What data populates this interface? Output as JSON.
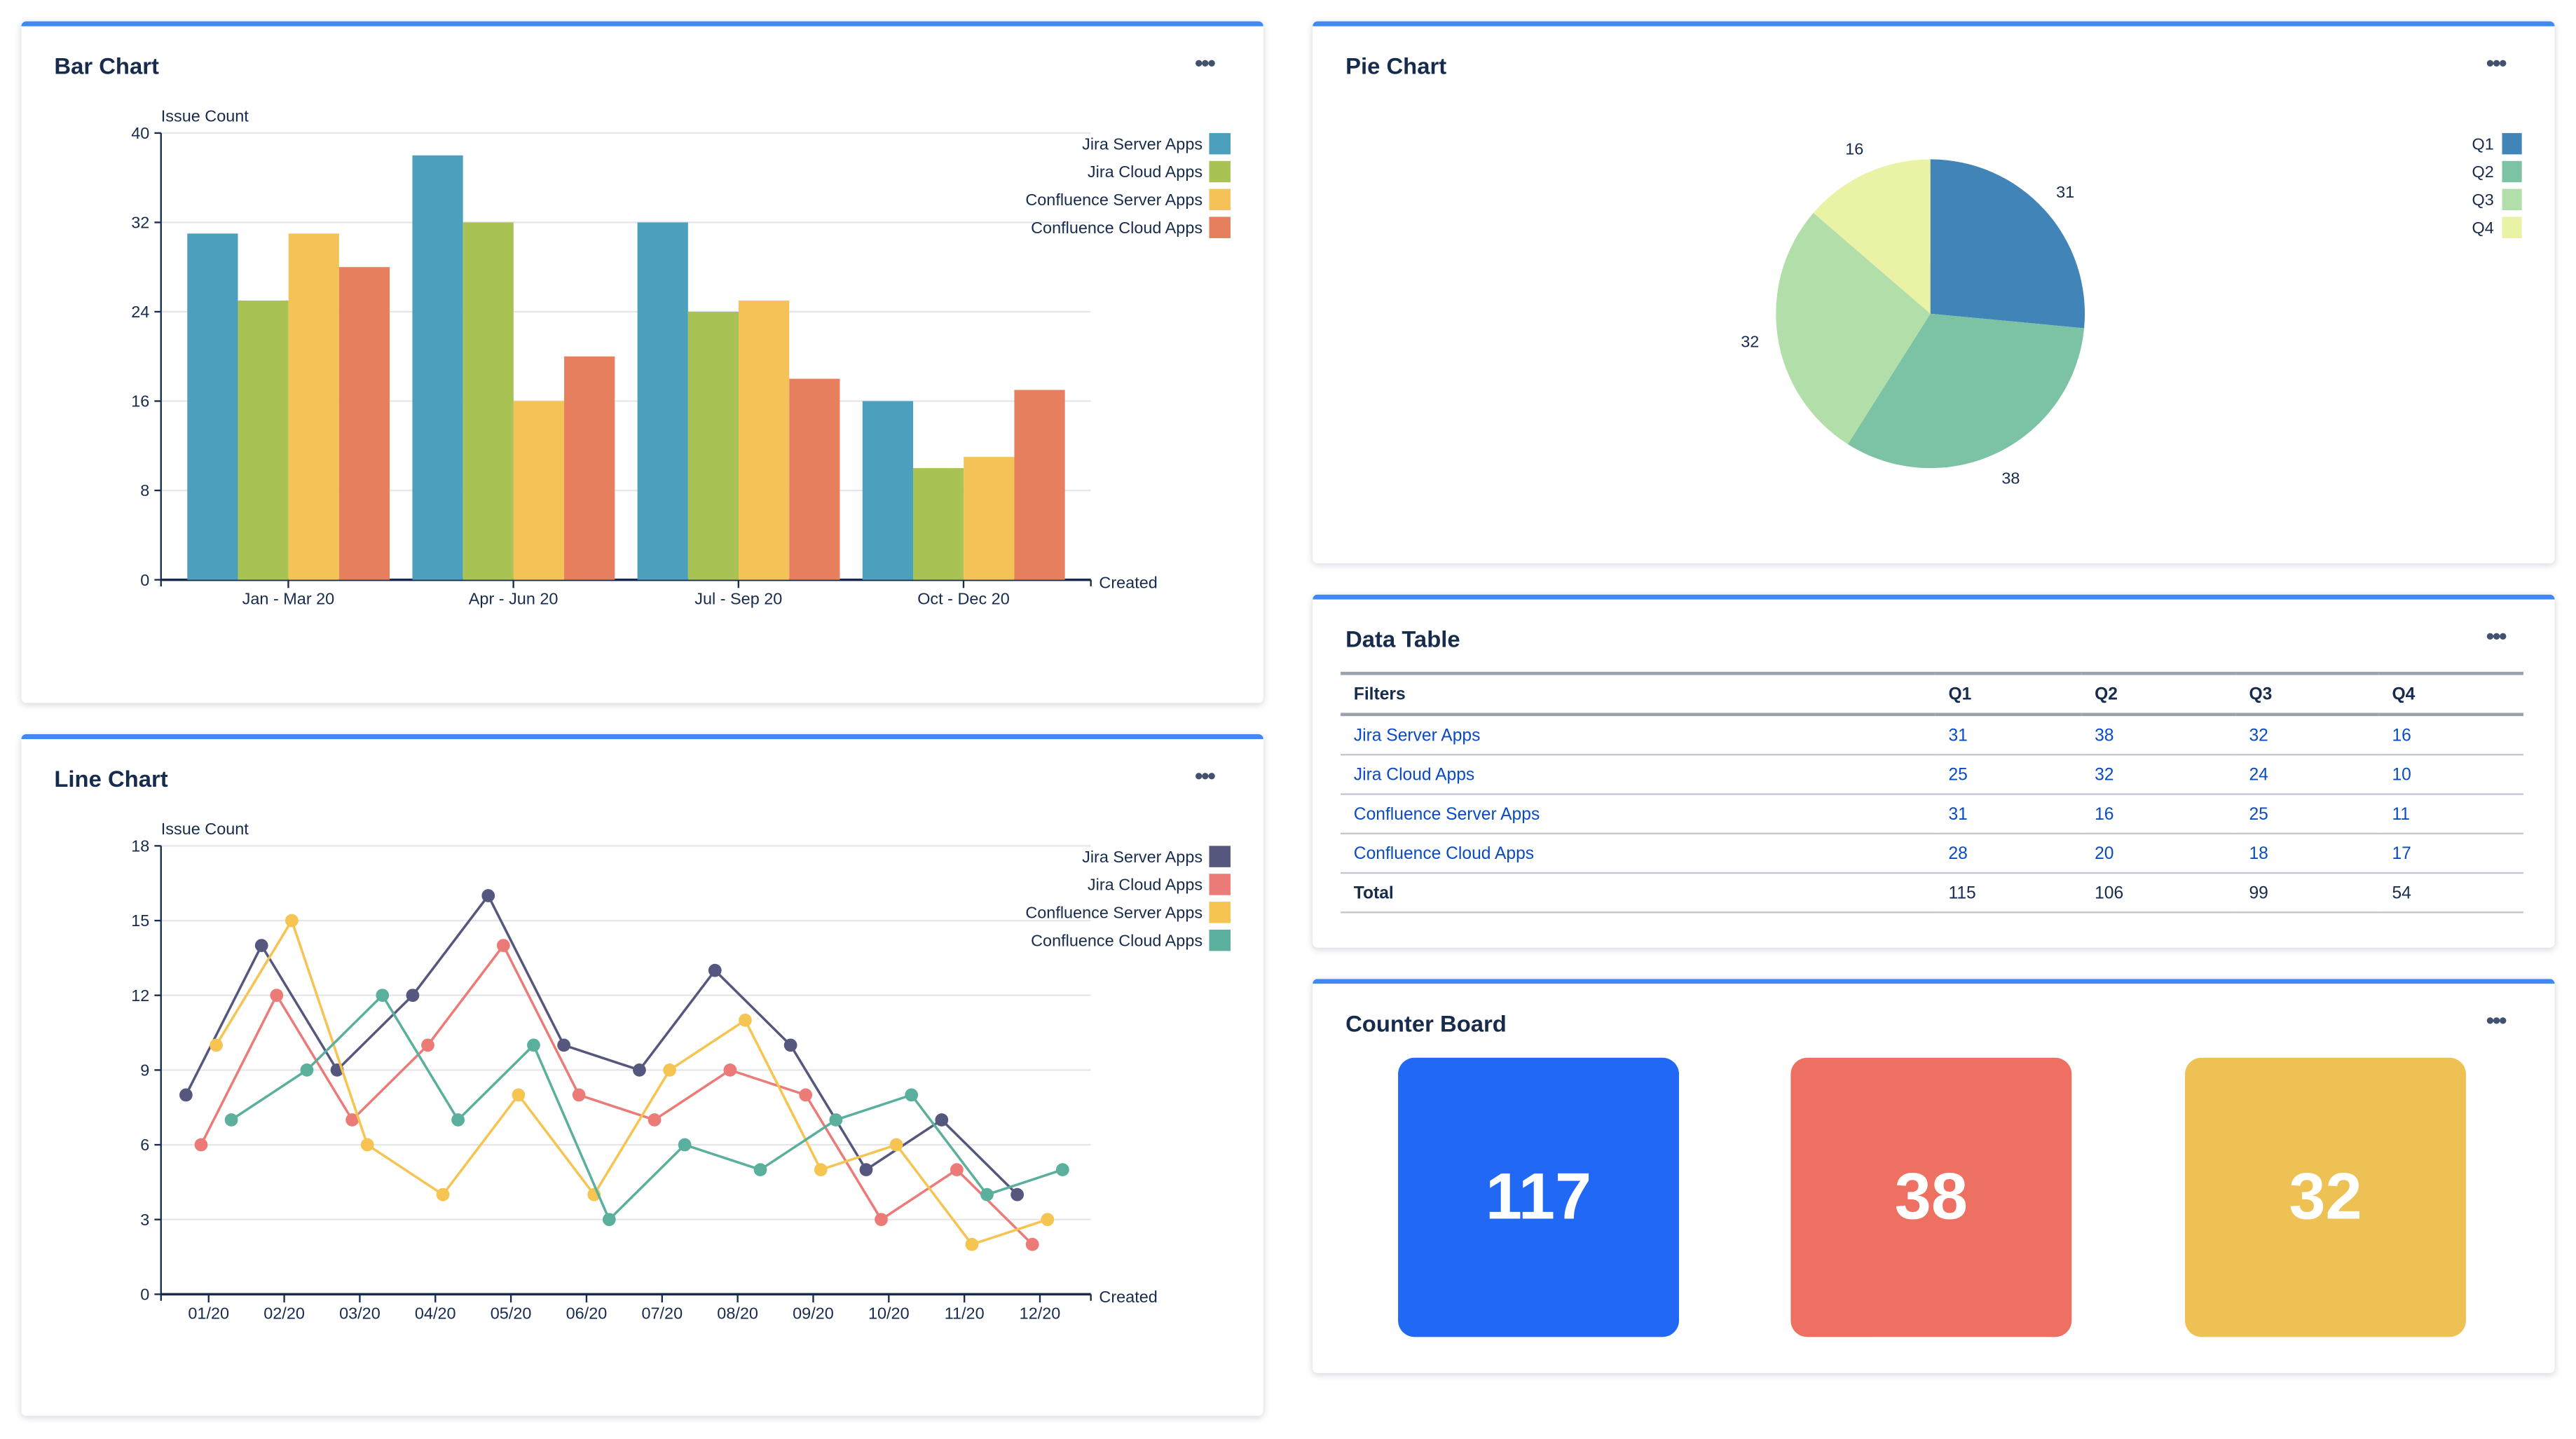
{
  "menu_label": "•••",
  "bar_card": {
    "title": "Bar Chart"
  },
  "line_card": {
    "title": "Line Chart"
  },
  "pie_card": {
    "title": "Pie Chart"
  },
  "table_card": {
    "title": "Data Table",
    "headers": [
      "Filters",
      "Q1",
      "Q2",
      "Q3",
      "Q4"
    ],
    "rows": [
      [
        "Jira Server Apps",
        "31",
        "38",
        "32",
        "16"
      ],
      [
        "Jira Cloud Apps",
        "25",
        "32",
        "24",
        "10"
      ],
      [
        "Confluence Server Apps",
        "31",
        "16",
        "25",
        "11"
      ],
      [
        "Confluence Cloud Apps",
        "28",
        "20",
        "18",
        "17"
      ]
    ],
    "total": [
      "Total",
      "115",
      "106",
      "99",
      "54"
    ]
  },
  "counter_card": {
    "title": "Counter Board",
    "counters": [
      {
        "value": "117",
        "color": "#2168f5"
      },
      {
        "value": "38",
        "color": "#ee7062"
      },
      {
        "value": "32",
        "color": "#eec155"
      }
    ]
  },
  "chart_data": [
    {
      "type": "bar",
      "title": "Bar Chart",
      "ylabel": "Issue Count",
      "xlabel": "Created",
      "ylim": [
        0,
        40
      ],
      "yticks": [
        0,
        8,
        16,
        24,
        32,
        40
      ],
      "grid": true,
      "legend": "top-right",
      "categories": [
        "Jan - Mar 20",
        "Apr - Jun 20",
        "Jul - Sep 20",
        "Oct - Dec 20"
      ],
      "series": [
        {
          "name": "Jira Server Apps",
          "color": "#4ca0bd",
          "values": [
            31,
            38,
            32,
            16
          ]
        },
        {
          "name": "Jira Cloud Apps",
          "color": "#a8c353",
          "values": [
            25,
            32,
            24,
            10
          ]
        },
        {
          "name": "Confluence Server Apps",
          "color": "#f5c257",
          "values": [
            31,
            16,
            25,
            11
          ]
        },
        {
          "name": "Confluence Cloud Apps",
          "color": "#e67f5e",
          "values": [
            28,
            20,
            18,
            17
          ]
        }
      ]
    },
    {
      "type": "line",
      "title": "Line Chart",
      "ylabel": "Issue Count",
      "xlabel": "Created",
      "ylim": [
        0,
        18
      ],
      "yticks": [
        0,
        3,
        6,
        9,
        12,
        15,
        18
      ],
      "grid": true,
      "legend": "top-right",
      "categories": [
        "01/20",
        "02/20",
        "03/20",
        "04/20",
        "05/20",
        "06/20",
        "07/20",
        "08/20",
        "09/20",
        "10/20",
        "11/20",
        "12/20"
      ],
      "series": [
        {
          "name": "Jira Server Apps",
          "color": "#56577f",
          "values": [
            8,
            14,
            9,
            12,
            16,
            10,
            9,
            13,
            10,
            5,
            7,
            4
          ]
        },
        {
          "name": "Jira Cloud Apps",
          "color": "#ec7b78",
          "values": [
            6,
            12,
            7,
            10,
            14,
            8,
            7,
            9,
            8,
            3,
            5,
            2
          ]
        },
        {
          "name": "Confluence Server Apps",
          "color": "#f5c451",
          "values": [
            10,
            15,
            6,
            4,
            8,
            4,
            9,
            11,
            5,
            6,
            2,
            3
          ]
        },
        {
          "name": "Confluence Cloud Apps",
          "color": "#5ab09c",
          "values": [
            7,
            9,
            12,
            7,
            10,
            3,
            6,
            5,
            7,
            8,
            4,
            5
          ]
        }
      ]
    },
    {
      "type": "pie",
      "title": "Pie Chart",
      "legend": "top-right",
      "slices": [
        {
          "label": "Q1",
          "value": 31,
          "color": "#4184b8"
        },
        {
          "label": "Q2",
          "value": 38,
          "color": "#7cc2a4"
        },
        {
          "label": "Q3",
          "value": 32,
          "color": "#b2dea9"
        },
        {
          "label": "Q4",
          "value": 16,
          "color": "#e9f2a5"
        }
      ]
    }
  ]
}
